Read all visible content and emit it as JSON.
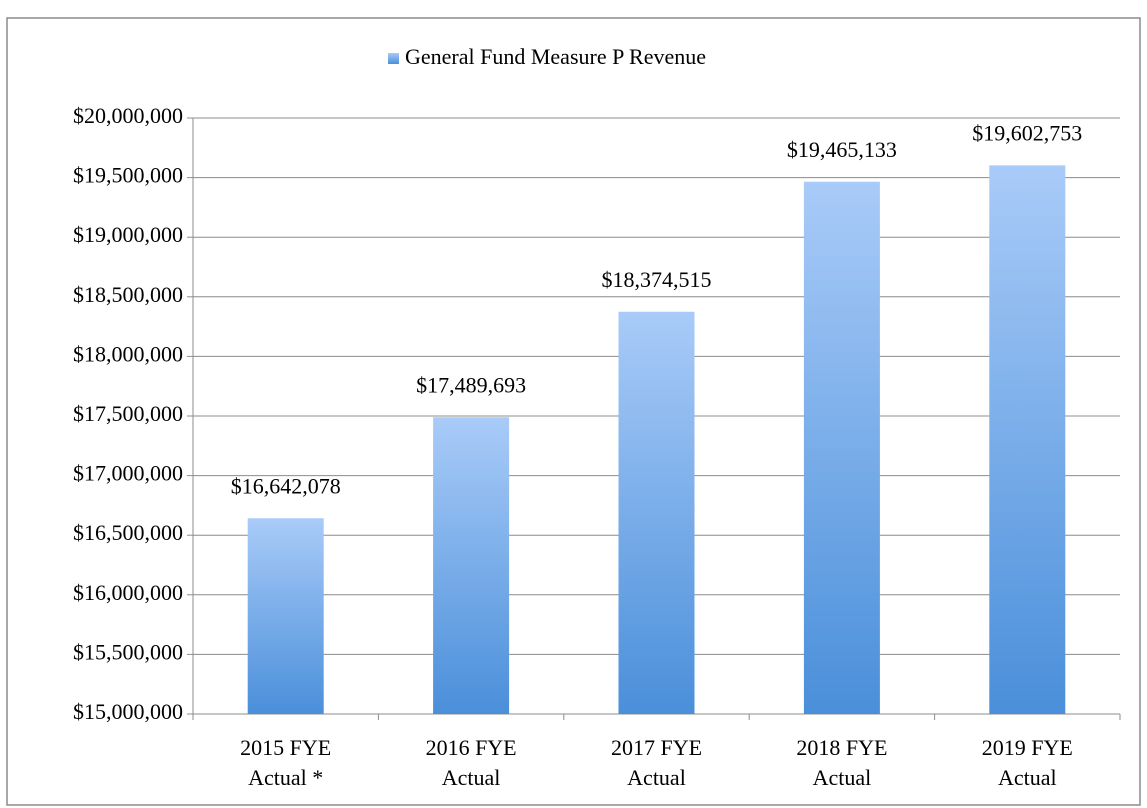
{
  "chart_data": {
    "type": "bar",
    "categories": [
      [
        "2015 FYE",
        "Actual *"
      ],
      [
        "2016 FYE",
        "Actual"
      ],
      [
        "2017 FYE",
        "Actual"
      ],
      [
        "2018 FYE",
        "Actual"
      ],
      [
        "2019 FYE",
        "Actual"
      ]
    ],
    "series": [
      {
        "name": "General Fund Measure P Revenue",
        "color": "#5b9be0",
        "values": [
          16642078,
          17489693,
          18374515,
          19465133,
          19602753
        ],
        "value_labels": [
          "$16,642,078",
          "$17,489,693",
          "$18,374,515",
          "$19,465,133",
          "$19,602,753"
        ]
      }
    ],
    "ylim": [
      15000000,
      20000000
    ],
    "yticks": [
      {
        "value": 15000000,
        "label": "$15,000,000"
      },
      {
        "value": 15500000,
        "label": "$15,500,000"
      },
      {
        "value": 16000000,
        "label": "$16,000,000"
      },
      {
        "value": 16500000,
        "label": "$16,500,000"
      },
      {
        "value": 17000000,
        "label": "$17,000,000"
      },
      {
        "value": 17500000,
        "label": "$17,500,000"
      },
      {
        "value": 18000000,
        "label": "$18,000,000"
      },
      {
        "value": 18500000,
        "label": "$18,500,000"
      },
      {
        "value": 19000000,
        "label": "$19,000,000"
      },
      {
        "value": 19500000,
        "label": "$19,500,000"
      },
      {
        "value": 20000000,
        "label": "$20,000,000"
      }
    ],
    "grid": true,
    "legend": "top"
  }
}
